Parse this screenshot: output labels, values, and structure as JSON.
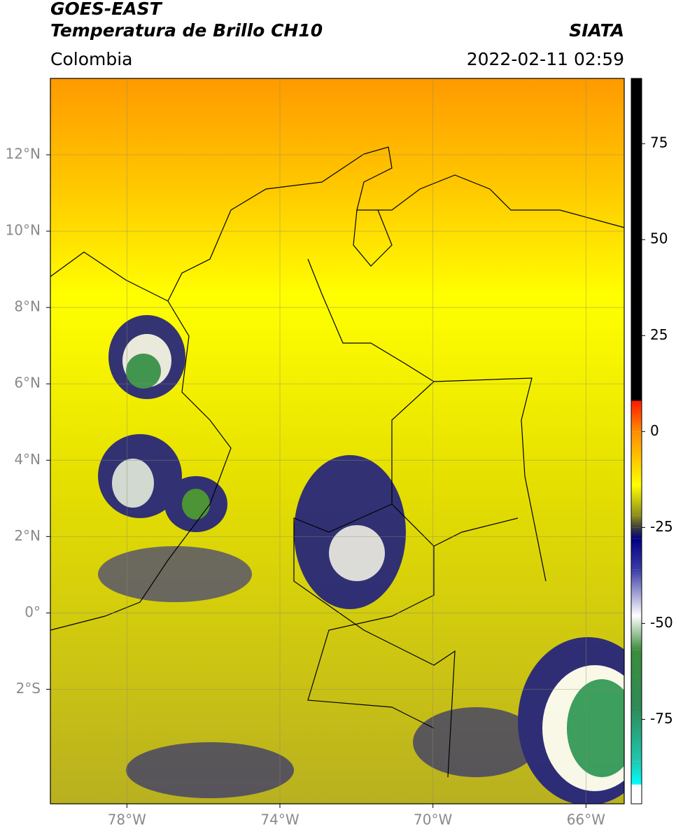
{
  "map": {
    "title": "GOES-EAST",
    "subtitle": "Temperatura de Brillo CH10",
    "source": "SIATA",
    "region": "Colombia",
    "datetime": "2022-02-11 02:59",
    "xlim": [
      -80,
      -65
    ],
    "ylim": [
      -5,
      14
    ],
    "xticks": [
      {
        "value": -78,
        "label": "78°W"
      },
      {
        "value": -74,
        "label": "74°W"
      },
      {
        "value": -70,
        "label": "70°W"
      },
      {
        "value": -66,
        "label": "66°W"
      }
    ],
    "yticks": [
      {
        "value": 12,
        "label": "12°N"
      },
      {
        "value": 10,
        "label": "10°N"
      },
      {
        "value": 8,
        "label": "8°N"
      },
      {
        "value": 6,
        "label": "6°N"
      },
      {
        "value": 4,
        "label": "4°N"
      },
      {
        "value": 2,
        "label": "2°N"
      },
      {
        "value": 0,
        "label": "0°"
      },
      {
        "value": -2,
        "label": "2°S"
      }
    ],
    "grid": true,
    "colorbar": {
      "clim": [
        -97,
        92
      ],
      "ticks": [
        75,
        50,
        25,
        0,
        -25,
        -50,
        -75
      ],
      "stops": [
        {
          "value": 92,
          "color": "#000000"
        },
        {
          "value": 8,
          "color": "#000000"
        },
        {
          "value": 8,
          "color": "#ff1a00"
        },
        {
          "value": 0,
          "color": "#ff8c00"
        },
        {
          "value": -14,
          "color": "#ffff00"
        },
        {
          "value": -22,
          "color": "#8c8c1e"
        },
        {
          "value": -25,
          "color": "#3c3c3c"
        },
        {
          "value": -28,
          "color": "#000080"
        },
        {
          "value": -36,
          "color": "#3c3ca8"
        },
        {
          "value": -48,
          "color": "#ffffff"
        },
        {
          "value": -57,
          "color": "#3c8c3c"
        },
        {
          "value": -72,
          "color": "#2e8b57"
        },
        {
          "value": -86,
          "color": "#20c8b0"
        },
        {
          "value": -92,
          "color": "#00ffff"
        },
        {
          "value": -92,
          "color": "#ffffff"
        },
        {
          "value": -97,
          "color": "#ffffff"
        }
      ]
    }
  }
}
